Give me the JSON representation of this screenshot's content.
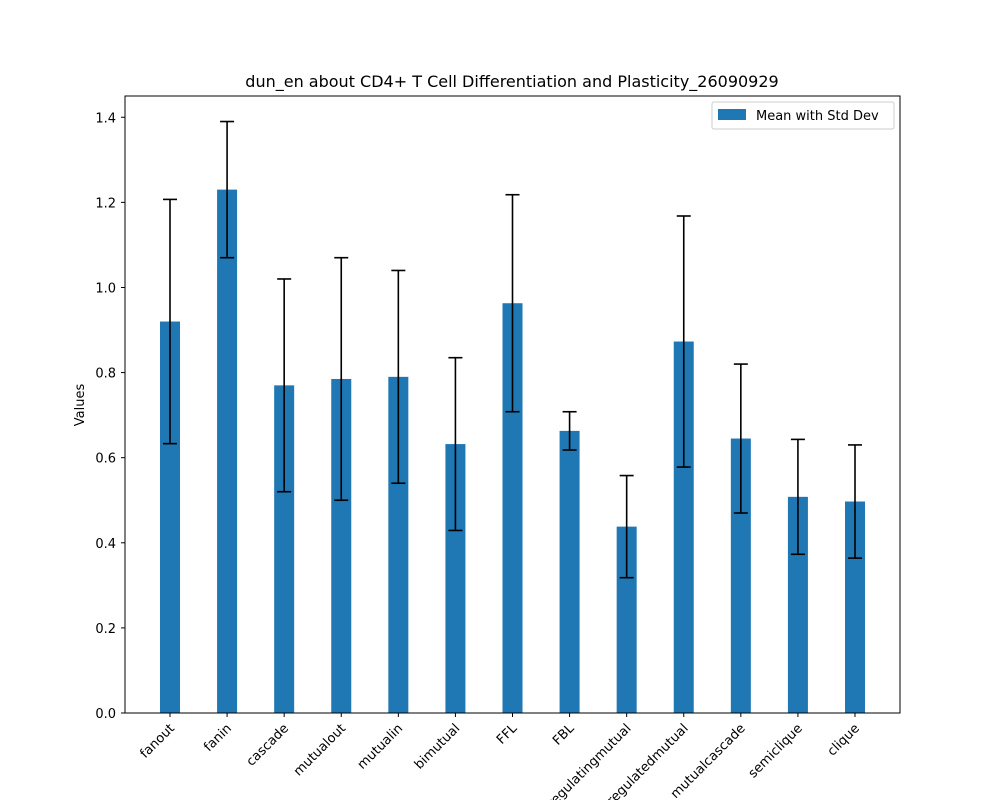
{
  "chart_data": {
    "type": "bar",
    "title": "dun_en about CD4+ T Cell Differentiation and Plasticity_26090929",
    "xlabel": "",
    "ylabel": "Values",
    "ylim": [
      0,
      1.45
    ],
    "yticks": [
      "0.0",
      "0.2",
      "0.4",
      "0.6",
      "0.8",
      "1.0",
      "1.2",
      "1.4"
    ],
    "ytick_values": [
      0.0,
      0.2,
      0.4,
      0.6,
      0.8,
      1.0,
      1.2,
      1.4
    ],
    "categories": [
      "fanout",
      "fanin",
      "cascade",
      "mutualout",
      "mutualin",
      "bimutual",
      "FFL",
      "FBL",
      "regulatingmutual",
      "regulatedmutual",
      "mutualcascade",
      "semiclique",
      "clique"
    ],
    "series": [
      {
        "name": "Mean with Std Dev",
        "values": [
          0.92,
          1.23,
          0.77,
          0.785,
          0.79,
          0.632,
          0.963,
          0.663,
          0.438,
          0.873,
          0.645,
          0.508,
          0.497
        ],
        "errors": [
          0.287,
          0.16,
          0.25,
          0.285,
          0.25,
          0.203,
          0.255,
          0.045,
          0.12,
          0.295,
          0.175,
          0.135,
          0.133
        ]
      }
    ],
    "grid": false,
    "legend_position": "upper right"
  },
  "colors": {
    "bar": "#1f77b4",
    "errorbar": "#000000",
    "axis": "#000000"
  }
}
